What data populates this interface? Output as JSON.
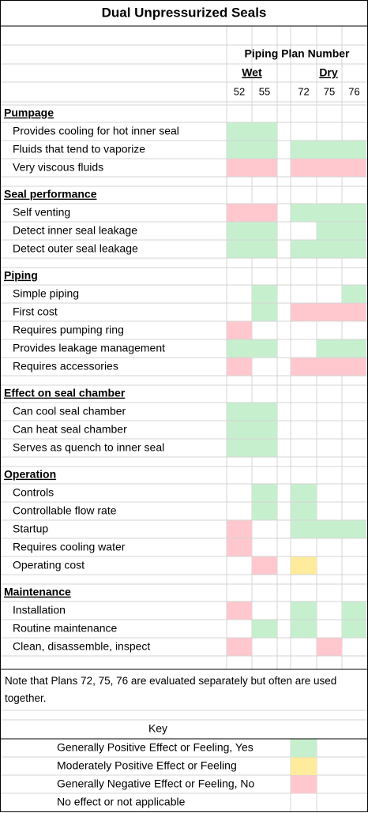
{
  "title": "Dual Unpressurized Seals",
  "header": {
    "group": "Piping Plan Number",
    "subgroups": [
      "Wet",
      "Dry"
    ],
    "columns": [
      52,
      55,
      72,
      75,
      76
    ]
  },
  "sections": [
    {
      "heading": "Pumpage",
      "rows": [
        {
          "label": "Provides cooling for hot inner seal",
          "cells": [
            0,
            0,
            null,
            null,
            null
          ]
        },
        {
          "label": "Fluids that tend to vaporize",
          "cells": [
            0,
            0,
            0,
            0,
            0
          ]
        },
        {
          "label": "Very viscous fluids",
          "cells": [
            2,
            2,
            2,
            2,
            2
          ]
        }
      ]
    },
    {
      "heading": "Seal performance",
      "rows": [
        {
          "label": "Self venting",
          "cells": [
            2,
            2,
            0,
            0,
            0
          ]
        },
        {
          "label": "Detect inner seal leakage",
          "cells": [
            0,
            0,
            null,
            0,
            0
          ]
        },
        {
          "label": "Detect outer seal leakage",
          "cells": [
            0,
            0,
            0,
            0,
            0
          ]
        }
      ]
    },
    {
      "heading": "Piping",
      "rows": [
        {
          "label": "Simple piping",
          "cells": [
            null,
            0,
            null,
            null,
            0
          ]
        },
        {
          "label": "First cost",
          "cells": [
            null,
            0,
            2,
            2,
            2
          ]
        },
        {
          "label": "Requires pumping ring",
          "cells": [
            2,
            null,
            null,
            null,
            null
          ]
        },
        {
          "label": "Provides leakage management",
          "cells": [
            0,
            0,
            null,
            0,
            0
          ]
        },
        {
          "label": "Requires accessories",
          "cells": [
            2,
            null,
            2,
            2,
            2
          ]
        }
      ]
    },
    {
      "heading": "Effect on seal chamber",
      "rows": [
        {
          "label": "Can cool seal chamber",
          "cells": [
            0,
            0,
            null,
            null,
            null
          ]
        },
        {
          "label": "Can heat seal chamber",
          "cells": [
            0,
            0,
            null,
            null,
            null
          ]
        },
        {
          "label": "Serves as quench to inner seal",
          "cells": [
            0,
            0,
            null,
            null,
            null
          ]
        }
      ]
    },
    {
      "heading": "Operation",
      "rows": [
        {
          "label": "Controls",
          "cells": [
            null,
            0,
            0,
            null,
            null
          ]
        },
        {
          "label": "Controllable flow rate",
          "cells": [
            null,
            0,
            0,
            null,
            null
          ]
        },
        {
          "label": "Startup",
          "cells": [
            2,
            null,
            0,
            0,
            0
          ]
        },
        {
          "label": "Requires cooling water",
          "cells": [
            2,
            null,
            null,
            null,
            null
          ]
        },
        {
          "label": "Operating cost",
          "cells": [
            null,
            2,
            1,
            null,
            null
          ]
        }
      ]
    },
    {
      "heading": "Maintenance",
      "rows": [
        {
          "label": "Installation",
          "cells": [
            2,
            null,
            0,
            null,
            0
          ]
        },
        {
          "label": "Routine maintenance",
          "cells": [
            null,
            0,
            0,
            null,
            0
          ]
        },
        {
          "label": "Clean, disassemble, inspect",
          "cells": [
            2,
            null,
            null,
            2,
            null
          ]
        }
      ]
    }
  ],
  "note": "Note that Plans 72, 75, 76 are evaluated separately but often are used together.",
  "key": {
    "title": "Key",
    "items": [
      {
        "label": "Generally Positive Effect or Feeling, Yes",
        "color": "#c6efce"
      },
      {
        "label": "Moderately Positive Effect or Feeling",
        "color": "#ffeb9c"
      },
      {
        "label": "Generally Negative Effect or Feeling, No",
        "color": "#ffc7ce"
      },
      {
        "label": "No effect or not applicable"
      }
    ]
  }
}
